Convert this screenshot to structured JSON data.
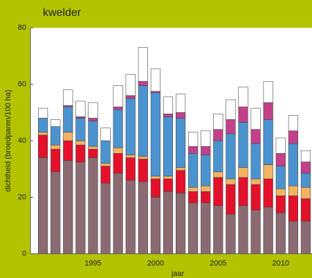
{
  "chart_data": {
    "type": "stacked-bar",
    "title": "kwelder",
    "xlabel": "jaar",
    "ylabel": "dichtheid (broedparen/100 ha)",
    "x": [
      1991,
      1992,
      1993,
      1994,
      1995,
      1996,
      1997,
      1998,
      1999,
      2000,
      2001,
      2002,
      2003,
      2004,
      2005,
      2006,
      2007,
      2008,
      2009,
      2010,
      2011,
      2012
    ],
    "xlim": [
      1990,
      2012.5
    ],
    "xticks": [
      1995,
      2000,
      2005,
      2010
    ],
    "ylim": [
      0,
      80
    ],
    "yticks": [
      0,
      20,
      40,
      60,
      80
    ],
    "series": [
      {
        "color": "#8c6a72",
        "values": [
          34,
          29,
          33,
          32.5,
          34,
          25,
          28.5,
          26,
          25.5,
          20,
          22,
          21.5,
          18,
          18,
          17,
          14,
          17,
          15.5,
          16.5,
          14.5,
          11.5,
          11.5
        ]
      },
      {
        "color": "#e3112b",
        "values": [
          8,
          8,
          7,
          6,
          3,
          6,
          7,
          8,
          8,
          6.5,
          4.5,
          8,
          4,
          4,
          10,
          10.5,
          10,
          9,
          10,
          6,
          9,
          8
        ]
      },
      {
        "color": "#f4b363",
        "values": [
          1,
          1.5,
          3,
          1.5,
          1,
          1,
          2,
          1,
          1,
          1,
          1,
          1,
          1.5,
          2,
          2,
          2,
          3.5,
          2,
          5,
          2.5,
          3.5,
          4
        ]
      },
      {
        "color": "#4b93cf",
        "values": [
          5,
          6.5,
          9,
          8,
          9,
          8,
          13.5,
          20,
          25,
          29.5,
          21,
          17.5,
          12,
          11,
          11,
          16,
          16,
          12.5,
          16,
          8,
          15,
          5
        ]
      },
      {
        "color": "#c3408a",
        "values": [
          0,
          0,
          0.5,
          0.5,
          1,
          0,
          1,
          1,
          1.5,
          0.5,
          1,
          2,
          2.5,
          3,
          4,
          5,
          5.5,
          5,
          6,
          4.5,
          4.5,
          4
        ]
      },
      {
        "color": "#ffffff",
        "values": [
          3.5,
          2.5,
          5.5,
          5.5,
          5.5,
          4.5,
          7.5,
          7.5,
          12,
          8,
          6,
          6.5,
          5,
          5.5,
          5.5,
          7,
          7,
          7.5,
          7.5,
          5.5,
          5.5,
          4
        ]
      }
    ]
  }
}
